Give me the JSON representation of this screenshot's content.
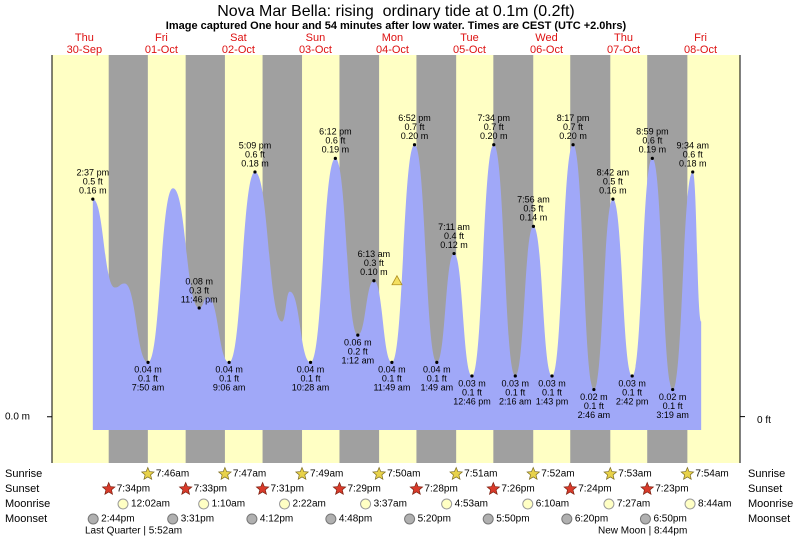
{
  "chart_data": {
    "type": "area",
    "title": "Nova Mar Bella: rising  ordinary tide at 0.1m (0.2ft)",
    "subtitle": "Image captured One hour and 54 minutes after low water. Times are CEST (UTC +2.0hrs)",
    "days": [
      [
        "Thu",
        "30-Sep"
      ],
      [
        "Fri",
        "01-Oct"
      ],
      [
        "Sat",
        "02-Oct"
      ],
      [
        "Sun",
        "03-Oct"
      ],
      [
        "Mon",
        "04-Oct"
      ],
      [
        "Tue",
        "05-Oct"
      ],
      [
        "Wed",
        "06-Oct"
      ],
      [
        "Thu",
        "07-Oct"
      ],
      [
        "Fri",
        "08-Oct"
      ]
    ],
    "x": [
      14.62,
      21.5,
      24.5,
      31.83,
      39.6,
      47.77,
      50.5,
      57.1,
      65.15,
      73.6,
      76.0,
      82.47,
      90.2,
      97.2,
      102.22,
      107.82,
      114.87,
      121.82,
      127.18,
      132.77,
      139.57,
      146.27,
      151.93,
      157.72,
      164.28,
      170.77,
      176.7,
      182.7,
      188.98,
      195.32,
      201.57,
      204.2
    ],
    "values": [
      0.16,
      0.095,
      0.098,
      0.04,
      0.168,
      0.08,
      0.088,
      0.04,
      0.18,
      0.07,
      0.092,
      0.04,
      0.19,
      0.06,
      0.1,
      0.04,
      0.2,
      0.04,
      0.12,
      0.03,
      0.2,
      0.03,
      0.14,
      0.03,
      0.2,
      0.02,
      0.16,
      0.03,
      0.19,
      0.02,
      0.18,
      0.07
    ],
    "value_labels": [
      [
        "2:37 pm",
        "0.5 ft",
        "0.16 m"
      ],
      null,
      null,
      [
        "0.04 m",
        "0.1 ft",
        "7:50 am"
      ],
      null,
      [
        "0.08 m",
        "0.3 ft",
        "11:46 pm"
      ],
      null,
      [
        "0.04 m",
        "0.1 ft",
        "9:06 am"
      ],
      [
        "5:09 pm",
        "0.6 ft",
        "0.18 m"
      ],
      null,
      null,
      [
        "0.04 m",
        "0.1 ft",
        "10:28 am"
      ],
      [
        "6:12 pm",
        "0.6 ft",
        "0.19 m"
      ],
      [
        "0.06 m",
        "0.2 ft",
        "1:12 am"
      ],
      [
        "6:13 am",
        "0.3 ft",
        "0.10 m"
      ],
      [
        "0.04 m",
        "0.1 ft",
        "11:49 am"
      ],
      [
        "6:52 pm",
        "0.7 ft",
        "0.20 m"
      ],
      [
        "0.04 m",
        "0.1 ft",
        "1:49 am"
      ],
      [
        "7:11 am",
        "0.4 ft",
        "0.12 m"
      ],
      [
        "0.03 m",
        "0.1 ft",
        "12:46 pm"
      ],
      [
        "7:34 pm",
        "0.7 ft",
        "0.20 m"
      ],
      [
        "0.03 m",
        "0.1 ft",
        "2:16 am"
      ],
      [
        "7:56 am",
        "0.5 ft",
        "0.14 m"
      ],
      [
        "0.03 m",
        "0.1 ft",
        "1:43 pm"
      ],
      [
        "8:17 pm",
        "0.7 ft",
        "0.20 m"
      ],
      [
        "0.02 m",
        "0.1 ft",
        "2:46 am"
      ],
      [
        "8:42 am",
        "0.5 ft",
        "0.16 m"
      ],
      [
        "0.03 m",
        "0.1 ft",
        "2:42 pm"
      ],
      [
        "8:59 pm",
        "0.6 ft",
        "0.19 m"
      ],
      [
        "0.02 m",
        "0.1 ft",
        "3:19 am"
      ],
      [
        "9:34 am",
        "0.6 ft",
        "0.18 m"
      ],
      null
    ],
    "label_side": [
      "above",
      null,
      null,
      "below",
      null,
      "above",
      null,
      "below",
      "above",
      null,
      null,
      "below",
      "above",
      "below",
      "above",
      "below",
      "above",
      "below",
      "above",
      "below",
      "above",
      "below",
      "above",
      "below",
      "above",
      "below",
      "above",
      "below",
      "above",
      "below",
      "above",
      null
    ],
    "color": "#a0a8f8",
    "xlim": [
      1.9,
      216.3
    ],
    "ylim": [
      -0.034,
      0.266
    ],
    "yticks": [
      {
        "value": 0,
        "label": "0.0 m"
      }
    ],
    "y2lim": [
      -0.112,
      0.873
    ],
    "y2ticks": [
      {
        "value": 0,
        "label": "0 ft"
      }
    ],
    "now": {
      "x": 109.4,
      "value": 0.1
    },
    "sun_moon": [
      {
        "name": "Sunrise",
        "times": [
          null,
          "7:46am",
          "7:47am",
          "7:49am",
          "7:50am",
          "7:51am",
          "7:52am",
          "7:53am",
          "7:54am"
        ]
      },
      {
        "name": "Sunset",
        "times": [
          "7:34pm",
          "7:33pm",
          "7:31pm",
          "7:29pm",
          "7:28pm",
          "7:26pm",
          "7:24pm",
          "7:23pm",
          null
        ]
      },
      {
        "name": "Moonrise",
        "times": [
          null,
          "12:02am",
          "1:10am",
          "2:22am",
          "3:37am",
          "4:53am",
          "6:10am",
          "7:27am",
          "8:44am"
        ]
      },
      {
        "name": "Moonset",
        "times": [
          "2:44pm",
          "3:31pm",
          "4:12pm",
          "4:48pm",
          "5:20pm",
          "5:50pm",
          "6:20pm",
          "6:50pm",
          null
        ]
      }
    ],
    "moon_phases": [
      "Last Quarter | 5:52am",
      "New Moon | 8:44pm"
    ]
  }
}
